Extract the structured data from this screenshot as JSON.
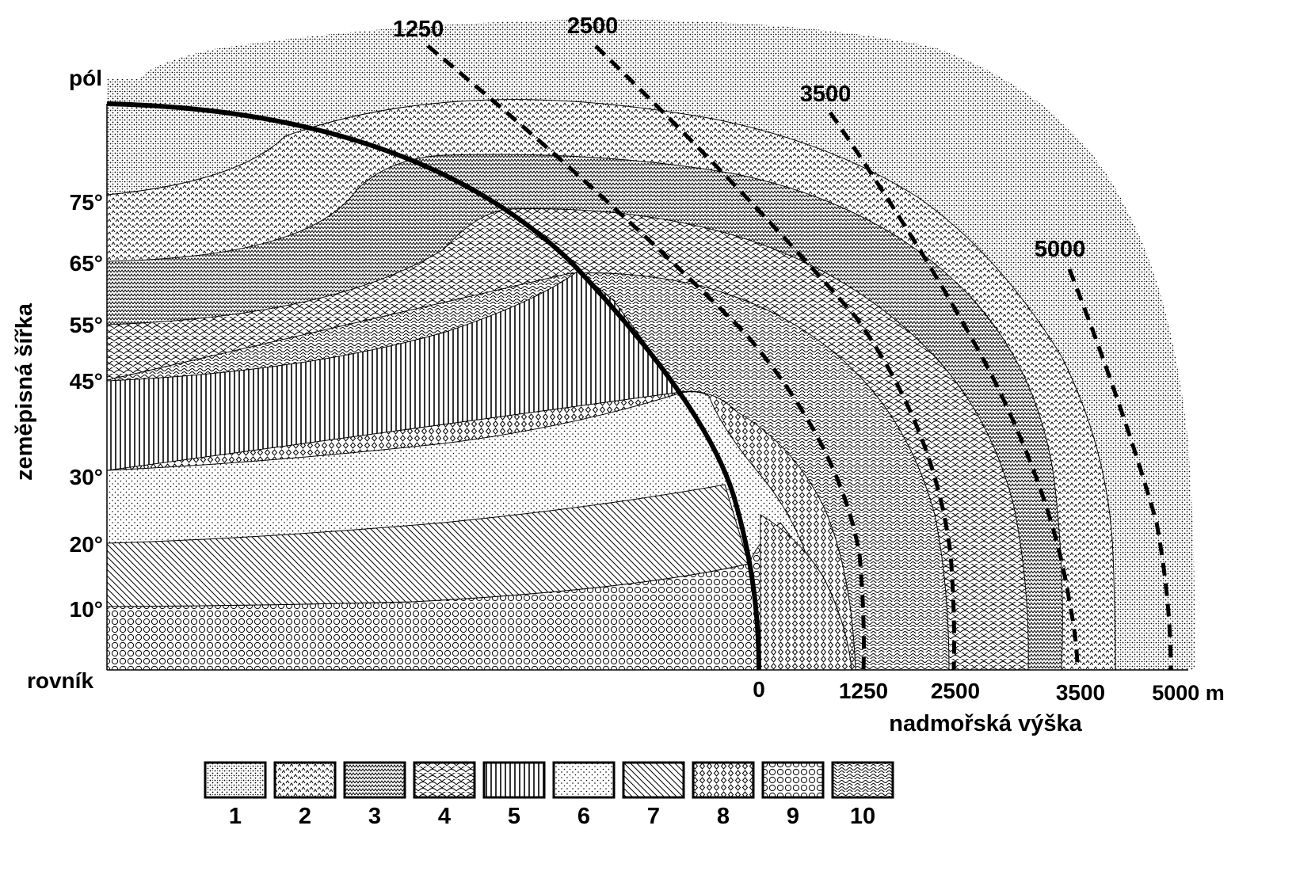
{
  "labels": {
    "pole": "pól",
    "equator": "rovník",
    "y_axis_title": "zeměpisná šířka",
    "x_axis_title": "nadmořská výška"
  },
  "latitude_ticks": [
    "75°",
    "65°",
    "55°",
    "45°",
    "30°",
    "20°",
    "10°"
  ],
  "altitude_ticks": [
    "0",
    "1250",
    "2500",
    "3500",
    "5000 m"
  ],
  "contour_labels": [
    "1250",
    "2500",
    "3500",
    "5000"
  ],
  "legend": [
    "1",
    "2",
    "3",
    "4",
    "5",
    "6",
    "7",
    "8",
    "9",
    "10"
  ],
  "colors": {
    "ink": "#000000",
    "paper": "#ffffff"
  }
}
